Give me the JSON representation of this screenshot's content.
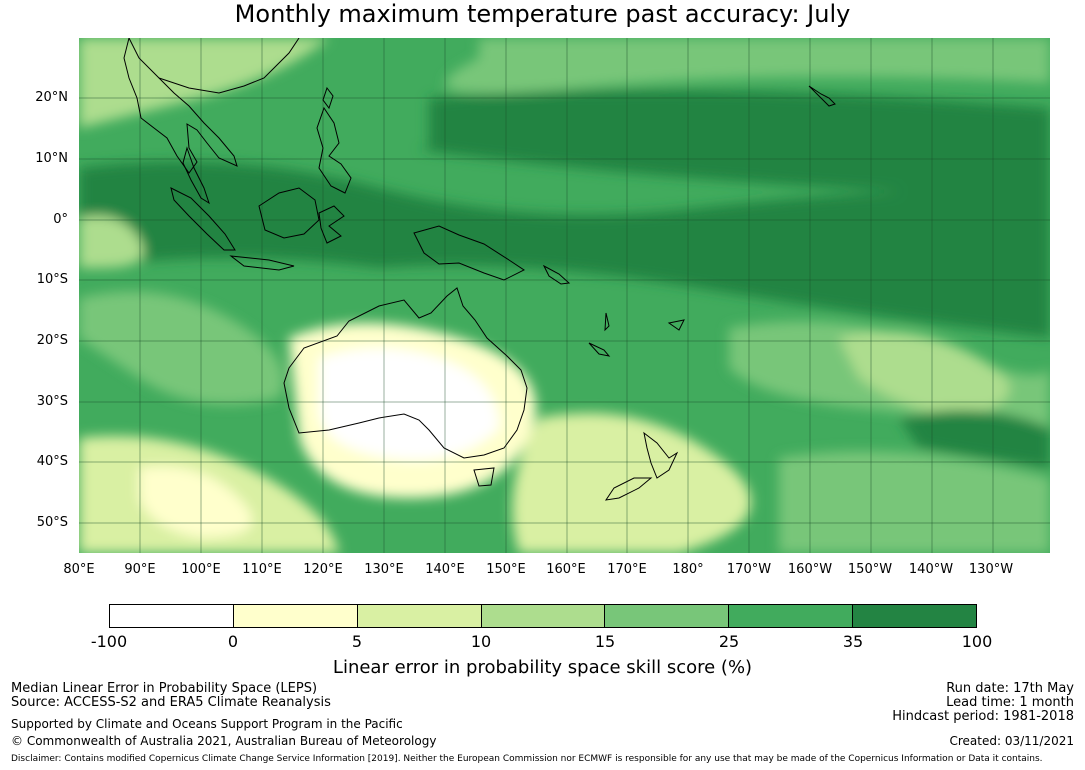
{
  "title": "Monthly maximum temperature past accuracy: July",
  "map": {
    "lon_ticks": [
      "80°E",
      "90°E",
      "100°E",
      "110°E",
      "120°E",
      "130°E",
      "140°E",
      "150°E",
      "160°E",
      "170°E",
      "180°",
      "170°W",
      "160°W",
      "150°W",
      "140°W",
      "130°W"
    ],
    "lat_ticks": [
      "20°N",
      "10°N",
      "0°",
      "10°S",
      "20°S",
      "30°S",
      "40°S",
      "50°S"
    ],
    "regions": [
      "Australia",
      "New Zealand",
      "New Guinea",
      "Borneo",
      "Sumatra",
      "Indochina",
      "Philippines"
    ]
  },
  "colorbar": {
    "ticks": [
      "-100",
      "0",
      "5",
      "10",
      "15",
      "25",
      "35",
      "100"
    ],
    "colors": [
      "#ffffff",
      "#ffffcc",
      "#d9f0a3",
      "#addd8e",
      "#78c679",
      "#41ab5d",
      "#238443"
    ],
    "label": "Linear error in probability space skill score (%)"
  },
  "info_left": {
    "line1": "Median Linear Error in Probability Space (LEPS)",
    "line2": "Source: ACCESS-S2 and ERA5 Climate Reanalysis",
    "line3": "Supported by Climate and Oceans Support Program in the Pacific",
    "line4": "© Commonwealth of Australia 2021, Australian Bureau of Meteorology"
  },
  "info_right": {
    "run_date": "Run date: 17th May",
    "lead_time": "Lead time: 1 month",
    "hindcast": "Hindcast period: 1981-2018",
    "created": "Created: 03/11/2021"
  },
  "disclaimer": "Disclaimer: Contains modified Copernicus Climate Change Service Information [2019]. Neither the European Commission nor ECMWF is responsible for any use that may be made of the Copernicus Information or Data it contains."
}
